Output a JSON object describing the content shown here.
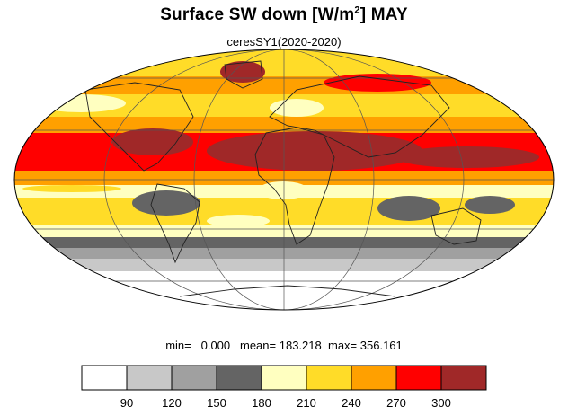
{
  "title": {
    "main": "Surface SW down [W/m",
    "sup": "2",
    "after": "]  MAY"
  },
  "subtitle": "ceresSY1(2020-2020)",
  "stats": {
    "min_label": "min=",
    "min": "0.000",
    "mean_label": "mean=",
    "mean": "183.218",
    "max_label": "max=",
    "max": "356.161"
  },
  "colorbar": {
    "colors": [
      "#ffffff",
      "#c8c8c8",
      "#a0a0a0",
      "#646464",
      "#ffffc0",
      "#ffdc28",
      "#ffa000",
      "#ff0000",
      "#a02828"
    ],
    "labels": [
      "90",
      "120",
      "150",
      "180",
      "210",
      "240",
      "270",
      "300"
    ]
  },
  "projection": "mollweide"
}
